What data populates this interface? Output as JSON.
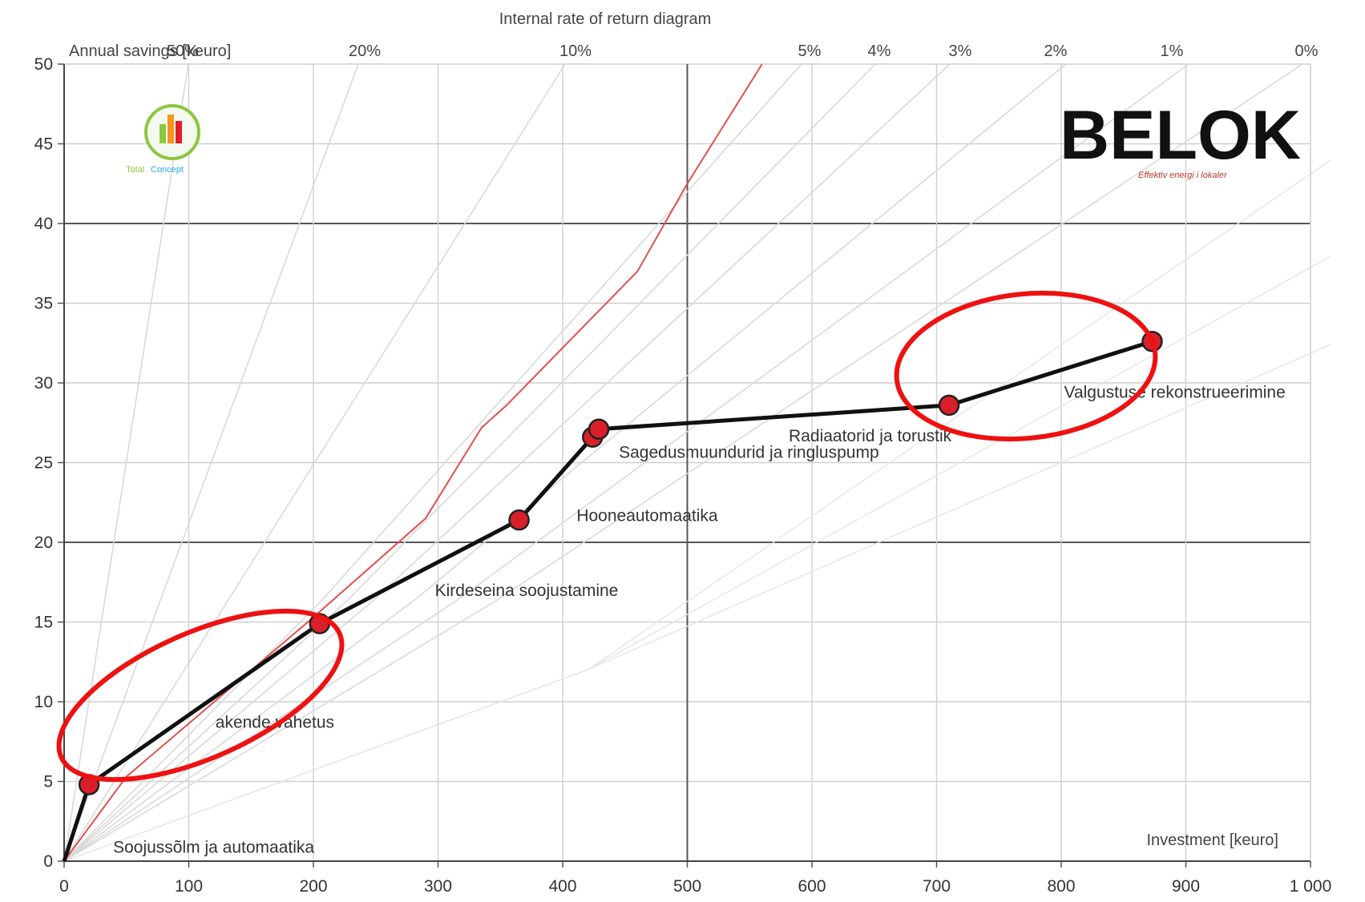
{
  "chart_data": {
    "type": "line",
    "title": "Internal rate of return diagram",
    "ylabel": "Annual savings [keuro]",
    "xlabel": "Investment [keuro]",
    "xlim": [
      0,
      1000
    ],
    "ylim": [
      0,
      50
    ],
    "x_ticks": [
      "0",
      "100",
      "200",
      "300",
      "400",
      "500",
      "600",
      "700",
      "800",
      "900",
      "1 000"
    ],
    "y_ticks": [
      "0",
      "5",
      "10",
      "15",
      "20",
      "25",
      "30",
      "35",
      "40",
      "45",
      "50"
    ],
    "grid": true,
    "irr_labels": [
      "50%",
      "20%",
      "10%",
      "5%",
      "4%",
      "3%",
      "2%",
      "1%",
      "0%"
    ],
    "irr_colors": {
      "guide": "#d9d9d9",
      "threshold": "#e05050"
    },
    "series": [
      {
        "color": "#111111",
        "marker_color": "#d9202a",
        "points": [
          {
            "x": 0,
            "y": 0
          },
          {
            "x": 20,
            "y": 4.8,
            "label": "Soojussõlm ja automaatika"
          },
          {
            "x": 205,
            "y": 14.9,
            "label": "akende vahetus"
          },
          {
            "x": 365,
            "y": 21.4,
            "label": "Kirdeseina soojustamine"
          },
          {
            "x": 424,
            "y": 26.6,
            "label": "Hooneautomaatika"
          },
          {
            "x": 429,
            "y": 27.1,
            "label": "Sagedusmuundurid ja ringluspump"
          },
          {
            "x": 710,
            "y": 28.6,
            "label": "Radiaatorid ja torustik"
          },
          {
            "x": 873,
            "y": 32.6,
            "label": "Valgustuse rekonstrueerimine"
          }
        ]
      }
    ],
    "highlight_ellipses": 2
  },
  "logos": {
    "brand": "BELOK",
    "brand_tagline": "Effektiv energi i lokaler",
    "totalconcept_a": "Total",
    "totalconcept_b": "Concept",
    "accent": "#e01f26"
  }
}
